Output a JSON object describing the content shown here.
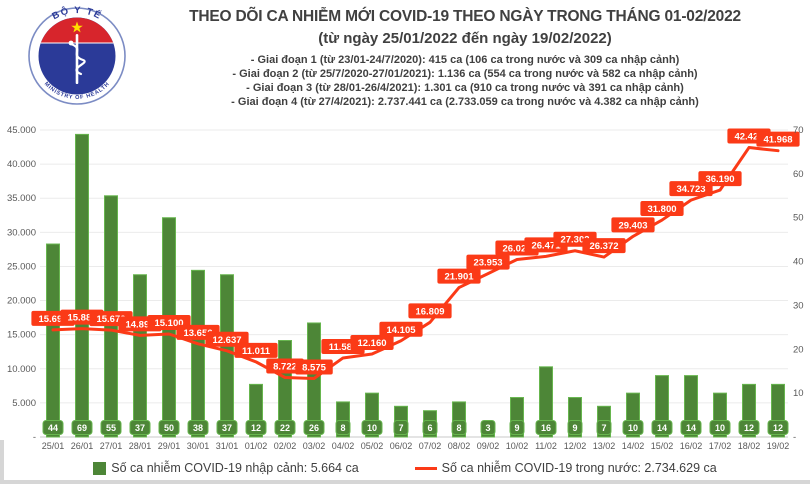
{
  "header": {
    "title": "THEO DÕI CA NHIỄM MỚI COVID-19 THEO NGÀY TRONG THÁNG 01-02/2022",
    "subtitle": "(từ ngày 25/01/2022 đến ngày 19/02/2022)",
    "notes": [
      "- Giai đoạn 1 (từ 23/01-24/7/2020): 415 ca (106 ca trong nước và 309 ca nhập cảnh)",
      "- Giai đoạn 2 (từ 25/7/2020-27/01/2021): 1.136 ca (554 ca trong nước và 582 ca nhập cảnh)",
      "- Giai đoạn 3 (từ 28/01-26/4/2021): 1.301 ca (910 ca trong nước và 391 ca nhập cảnh)",
      "- Giai đoạn 4 (từ 27/4/2021): 2.737.441 ca (2.733.059 ca trong nước và 4.382 ca nhập cảnh)"
    ],
    "logo": {
      "top_text": "BỘ Y TẾ",
      "bottom_text": "MINISTRY OF HEALTH"
    }
  },
  "chart_data": {
    "type": "bar+line",
    "title": "THEO DÕI CA NHIỄM MỚI COVID-19 THEO NGÀY TRONG THÁNG 01-02/2022",
    "grid": true,
    "categories": [
      "25/01",
      "26/01",
      "27/01",
      "28/01",
      "29/01",
      "30/01",
      "31/01",
      "01/02",
      "02/02",
      "03/02",
      "04/02",
      "05/02",
      "06/02",
      "07/02",
      "08/02",
      "09/02",
      "10/02",
      "11/02",
      "12/02",
      "13/02",
      "14/02",
      "15/02",
      "16/02",
      "17/02",
      "18/02",
      "19/02"
    ],
    "series": [
      {
        "name": "Số ca nhiễm COVID-19 nhập cảnh",
        "type": "bar",
        "axis": "right",
        "color": "#4d8637",
        "border_color": "#67b64e",
        "values": [
          44,
          69,
          55,
          37,
          50,
          38,
          37,
          12,
          22,
          26,
          8,
          10,
          7,
          6,
          8,
          3,
          9,
          16,
          9,
          7,
          10,
          14,
          14,
          10,
          12,
          12
        ]
      },
      {
        "name": "Số ca nhiễm COVID-19 trong nước",
        "type": "line",
        "axis": "left",
        "color": "#fb3a17",
        "values": [
          15699,
          15885,
          15672,
          14892,
          15100,
          13656,
          12637,
          11011,
          8722,
          8575,
          11586,
          12160,
          14105,
          16809,
          21901,
          23953,
          26023,
          26471,
          27302,
          26372,
          29403,
          31800,
          34723,
          36190,
          42427,
          41968
        ],
        "labels": [
          "15.699",
          "15.885",
          "15.672",
          "14.892",
          "15.100",
          "13.656",
          "12.637",
          "11.011",
          "8.722",
          "8.575",
          "11.586",
          "12.160",
          "14.105",
          "16.809",
          "21.901",
          "23.953",
          "26.023",
          "26.471",
          "27.302",
          "26.372",
          "29.403",
          "31.800",
          "34.723",
          "36.190",
          "42.427",
          "41.968"
        ]
      }
    ],
    "left_axis": {
      "min": 0,
      "max": 45000,
      "step": 5000,
      "tick_labels": [
        "45.000",
        "40.000",
        "35.000",
        "30.000",
        "25.000",
        "20.000",
        "15.000",
        "10.000",
        "5.000",
        "-"
      ],
      "tick_values": [
        45000,
        40000,
        35000,
        30000,
        25000,
        20000,
        15000,
        10000,
        5000,
        0
      ]
    },
    "right_axis": {
      "min": 0,
      "max": 70,
      "step": 10,
      "tick_labels": [
        "70",
        "60",
        "50",
        "40",
        "30",
        "20",
        "10",
        "-"
      ],
      "tick_values": [
        70,
        60,
        50,
        40,
        30,
        20,
        10,
        0
      ]
    },
    "legend_position": "bottom"
  },
  "legend": [
    {
      "marker": "square",
      "color": "#4d8637",
      "label": "Số ca nhiễm COVID-19 nhập cảnh: 5.664 ca"
    },
    {
      "marker": "line",
      "color": "#fb3a17",
      "label": "Số ca nhiễm COVID-19 trong nước: 2.734.629 ca"
    }
  ],
  "colors": {
    "bar_fill": "#4d8637",
    "bar_border": "#67b64e",
    "line": "#fb3a17",
    "grid": "#ebebeb",
    "baseline": "#c9c9c9",
    "axis_text": "#595959",
    "header_text": "#404040",
    "logo_blue": "#2b3a98",
    "logo_red": "#d7252c",
    "logo_star": "#ffde00"
  }
}
